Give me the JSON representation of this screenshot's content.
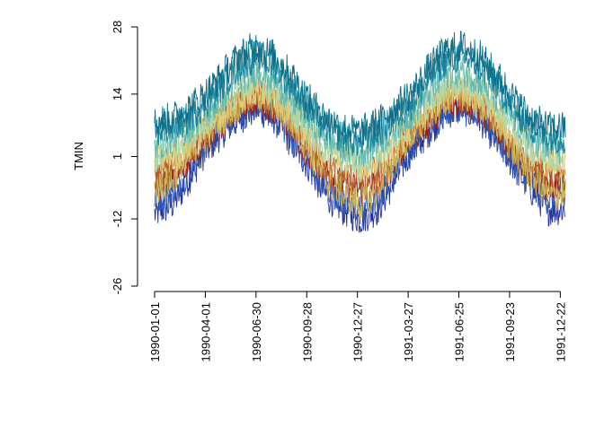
{
  "chart_data": {
    "type": "line",
    "title": "",
    "xlabel": "",
    "ylabel": "TMIN",
    "ylim": [
      -26,
      28
    ],
    "xlim": [
      "1990-01-01",
      "1991-12-31"
    ],
    "grid": false,
    "legend": "none",
    "y_ticks": [
      "-26",
      "-12",
      "1",
      "14",
      "28"
    ],
    "x_ticks": [
      "1990-01-01",
      "1990-04-01",
      "1990-06-30",
      "1990-09-28",
      "1990-12-27",
      "1991-03-27",
      "1991-06-25",
      "1991-09-23",
      "1991-12-22"
    ],
    "series": [
      {
        "color": "#23359C",
        "values_by_month": [
          -11,
          -9,
          -4,
          2,
          6,
          9,
          11,
          9,
          4,
          -1,
          -7,
          -10,
          -12,
          -10,
          -4,
          2,
          6,
          10,
          11,
          9,
          4,
          -1,
          -6,
          -10
        ]
      },
      {
        "color": "#2E58B8",
        "values_by_month": [
          -8,
          -6,
          -2,
          3,
          7,
          10,
          12,
          10,
          5,
          0,
          -5,
          -8,
          -10,
          -8,
          -2,
          3,
          7,
          11,
          12,
          10,
          5,
          0,
          -4,
          -8
        ]
      },
      {
        "color": "#9C1F0F",
        "values_by_month": [
          -5,
          -3,
          0,
          5,
          8,
          11,
          13,
          11,
          7,
          2,
          -2,
          -5,
          -6,
          -5,
          0,
          5,
          8,
          12,
          13,
          11,
          7,
          2,
          -2,
          -5
        ]
      },
      {
        "color": "#B5672A",
        "values_by_month": [
          -3,
          -1,
          2,
          6,
          9,
          12,
          14,
          12,
          8,
          3,
          -1,
          -3,
          -4,
          -2,
          2,
          6,
          10,
          13,
          14,
          12,
          8,
          3,
          0,
          -3
        ]
      },
      {
        "color": "#C9B457",
        "values_by_month": [
          -6,
          -4,
          1,
          5,
          9,
          12,
          14,
          12,
          8,
          2,
          -4,
          -7,
          -9,
          -6,
          0,
          5,
          9,
          13,
          14,
          12,
          8,
          2,
          -3,
          -7
        ]
      },
      {
        "color": "#E3CC7A",
        "values_by_month": [
          0,
          1,
          3,
          7,
          10,
          13,
          15,
          14,
          10,
          5,
          2,
          0,
          -1,
          0,
          3,
          7,
          11,
          14,
          15,
          14,
          10,
          5,
          2,
          0
        ]
      },
      {
        "color": "#A8D8B0",
        "values_by_month": [
          1,
          3,
          5,
          8,
          12,
          15,
          17,
          15,
          11,
          7,
          3,
          1,
          0,
          2,
          5,
          9,
          12,
          16,
          17,
          15,
          11,
          7,
          3,
          1
        ]
      },
      {
        "color": "#62B7AE",
        "values_by_month": [
          3,
          5,
          7,
          10,
          13,
          17,
          19,
          17,
          13,
          9,
          5,
          3,
          2,
          4,
          7,
          10,
          14,
          18,
          19,
          17,
          13,
          9,
          5,
          3
        ]
      },
      {
        "color": "#17849F",
        "values_by_month": [
          6,
          7,
          9,
          12,
          16,
          20,
          22,
          20,
          16,
          11,
          7,
          5,
          4,
          6,
          9,
          12,
          17,
          21,
          22,
          20,
          16,
          11,
          7,
          5
        ]
      },
      {
        "color": "#0E6F86",
        "values_by_month": [
          8,
          9,
          11,
          14,
          18,
          22,
          24,
          22,
          18,
          13,
          9,
          7,
          6,
          8,
          11,
          14,
          19,
          23,
          24,
          22,
          18,
          13,
          9,
          7
        ]
      }
    ]
  }
}
